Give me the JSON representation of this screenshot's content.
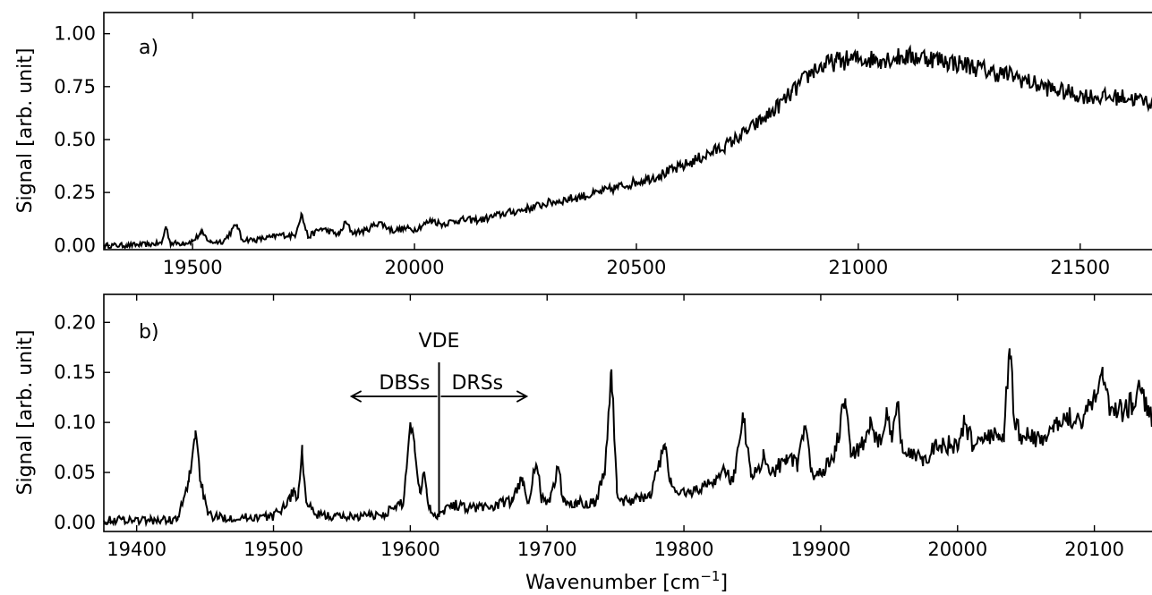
{
  "xlabel": "Wavenumber [cm",
  "xlabel_sup": "−1",
  "xlabel_end": "]",
  "chart_data": [
    {
      "type": "line",
      "panel_label": "a)",
      "ylabel": "Signal [arb. unit]",
      "xlim": [
        19300,
        21680
      ],
      "ylim": [
        -0.02,
        1.1
      ],
      "xticks": [
        19500,
        20000,
        20500,
        21000,
        21500
      ],
      "xtick_labels": [
        "19500",
        "20000",
        "20500",
        "21000",
        "21500"
      ],
      "yticks": [
        0.0,
        0.25,
        0.5,
        0.75,
        1.0
      ],
      "ytick_labels": [
        "0.00",
        "0.25",
        "0.50",
        "0.75",
        "1.00"
      ],
      "grid": false,
      "series": [
        {
          "x": [
            19300,
            19350,
            19400,
            19430,
            19440,
            19450,
            19480,
            19500,
            19520,
            19540,
            19570,
            19600,
            19610,
            19640,
            19680,
            19700,
            19730,
            19745,
            19760,
            19790,
            19830,
            19845,
            19860,
            19890,
            19920,
            19950,
            19980,
            20000,
            20040,
            20060,
            20100,
            20150,
            20200,
            20250,
            20300,
            20350,
            20400,
            20450,
            20500,
            20550,
            20600,
            20650,
            20700,
            20750,
            20800,
            20850,
            20900,
            20950,
            21000,
            21050,
            21100,
            21150,
            21200,
            21250,
            21300,
            21350,
            21400,
            21450,
            21500,
            21550,
            21600,
            21650,
            21680
          ],
          "y": [
            0.0,
            0.0,
            0.005,
            0.01,
            0.09,
            0.01,
            0.01,
            0.02,
            0.06,
            0.015,
            0.02,
            0.1,
            0.03,
            0.025,
            0.04,
            0.05,
            0.045,
            0.15,
            0.04,
            0.08,
            0.05,
            0.11,
            0.06,
            0.07,
            0.11,
            0.07,
            0.08,
            0.075,
            0.12,
            0.1,
            0.12,
            0.12,
            0.15,
            0.17,
            0.2,
            0.22,
            0.24,
            0.27,
            0.3,
            0.33,
            0.37,
            0.42,
            0.47,
            0.54,
            0.62,
            0.72,
            0.83,
            0.87,
            0.88,
            0.88,
            0.89,
            0.89,
            0.87,
            0.85,
            0.82,
            0.8,
            0.76,
            0.73,
            0.71,
            0.7,
            0.7,
            0.68,
            0.67
          ]
        }
      ]
    },
    {
      "type": "line",
      "panel_label": "b)",
      "ylabel": "Signal [arb. unit]",
      "xlim": [
        19376,
        20148
      ],
      "ylim": [
        -0.009,
        0.228
      ],
      "xticks": [
        19400,
        19500,
        19600,
        19700,
        19800,
        19900,
        20000,
        20100
      ],
      "xtick_labels": [
        "19400",
        "19500",
        "19600",
        "19700",
        "19800",
        "19900",
        "20000",
        "20100"
      ],
      "yticks": [
        0.0,
        0.05,
        0.1,
        0.15,
        0.2
      ],
      "ytick_labels": [
        "0.00",
        "0.05",
        "0.10",
        "0.15",
        "0.20"
      ],
      "grid": false,
      "annotations": {
        "vde_x": 19621,
        "vde_label": "VDE",
        "left_label": "DBSs",
        "right_label": "DRSs",
        "arrow_left_to": 19557,
        "arrow_right_to": 19685,
        "arrow_y": 0.126
      },
      "series": [
        {
          "x": [
            19376,
            19390,
            19410,
            19430,
            19438,
            19443,
            19447,
            19452,
            19460,
            19480,
            19500,
            19510,
            19515,
            19518,
            19521,
            19524,
            19530,
            19545,
            19560,
            19580,
            19595,
            19600,
            19603,
            19607,
            19610,
            19612,
            19615,
            19620,
            19630,
            19645,
            19660,
            19675,
            19682,
            19686,
            19692,
            19696,
            19702,
            19708,
            19712,
            19720,
            19735,
            19742,
            19747,
            19751,
            19756,
            19765,
            19775,
            19786,
            19790,
            19795,
            19805,
            19820,
            19830,
            19836,
            19843,
            19849,
            19858,
            19866,
            19875,
            19883,
            19888,
            19893,
            19900,
            19910,
            19918,
            19922,
            19928,
            19936,
            19942,
            19948,
            19952,
            19956,
            19960,
            19966,
            19975,
            19990,
            20000,
            20005,
            20012,
            20020,
            20030,
            20034,
            20038,
            20042,
            20050,
            20060,
            20070,
            20080,
            20090,
            20100,
            20106,
            20112,
            20120,
            20128,
            20135,
            20140,
            20148
          ],
          "y": [
            0.002,
            0.003,
            0.002,
            0.003,
            0.04,
            0.092,
            0.04,
            0.007,
            0.005,
            0.005,
            0.006,
            0.02,
            0.032,
            0.025,
            0.07,
            0.02,
            0.008,
            0.006,
            0.006,
            0.008,
            0.02,
            0.1,
            0.08,
            0.03,
            0.05,
            0.03,
            0.01,
            0.008,
            0.018,
            0.015,
            0.016,
            0.022,
            0.045,
            0.02,
            0.058,
            0.025,
            0.02,
            0.056,
            0.02,
            0.02,
            0.02,
            0.05,
            0.153,
            0.03,
            0.02,
            0.025,
            0.025,
            0.078,
            0.04,
            0.03,
            0.03,
            0.04,
            0.052,
            0.04,
            0.11,
            0.045,
            0.065,
            0.05,
            0.068,
            0.055,
            0.097,
            0.05,
            0.05,
            0.065,
            0.124,
            0.065,
            0.075,
            0.095,
            0.075,
            0.11,
            0.08,
            0.118,
            0.07,
            0.07,
            0.065,
            0.08,
            0.072,
            0.1,
            0.075,
            0.09,
            0.082,
            0.09,
            0.174,
            0.095,
            0.085,
            0.085,
            0.09,
            0.11,
            0.1,
            0.13,
            0.145,
            0.115,
            0.11,
            0.12,
            0.135,
            0.105,
            0.11
          ]
        }
      ]
    }
  ]
}
